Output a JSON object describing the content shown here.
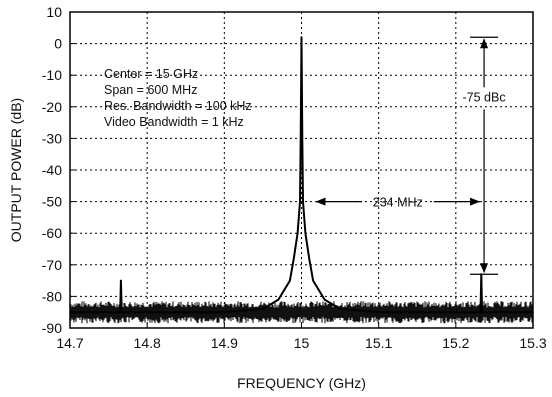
{
  "chart_data": {
    "type": "line",
    "xlabel": "FREQUENCY (GHz)",
    "ylabel": "OUTPUT POWER (dB)",
    "xlim": [
      14.7,
      15.3
    ],
    "ylim": [
      -90,
      10
    ],
    "xticks": [
      "14.7",
      "14.8",
      "14.9",
      "15",
      "15.1",
      "15.2",
      "15.3"
    ],
    "xtick_values": [
      14.7,
      14.8,
      14.9,
      15.0,
      15.1,
      15.2,
      15.3
    ],
    "yticks": [
      "10",
      "0",
      "-10",
      "-20",
      "-30",
      "-40",
      "-50",
      "-60",
      "-70",
      "-80",
      "-90"
    ],
    "ytick_values": [
      10,
      0,
      -10,
      -20,
      -30,
      -40,
      -50,
      -60,
      -70,
      -80,
      -90
    ],
    "grid": true,
    "grid_style": "dotted",
    "series": [
      {
        "noise_floor_db": -85,
        "x": [
          14.7,
          14.765,
          14.766,
          14.767,
          14.768,
          14.77,
          14.9,
          14.95,
          14.97,
          14.985,
          14.99,
          14.995,
          14.998,
          14.999,
          15.0,
          15.001,
          15.002,
          15.005,
          15.01,
          15.015,
          15.03,
          15.05,
          15.1,
          15.2,
          15.232,
          15.233,
          15.234,
          15.235,
          15.3
        ],
        "y": [
          -85,
          -85,
          -75,
          -85,
          -85,
          -85,
          -85,
          -84,
          -81,
          -75,
          -68,
          -60,
          -50,
          -30,
          2,
          -30,
          -50,
          -60,
          -68,
          -75,
          -81,
          -84,
          -85,
          -85,
          -85,
          -73,
          -85,
          -85,
          -85
        ]
      }
    ],
    "annotations": {
      "settings": [
        "Center = 15 GHz",
        "Span = 600 MHz",
        "Res. Bandwidth = 100 kHz",
        "Video Bandwidth = 1 kHz"
      ],
      "spur_offset_label": "234 MHz",
      "dbc_label": "-75 dBc",
      "dbc_top": 2,
      "dbc_bottom": -73,
      "offset_from": 15.0,
      "offset_to": 15.234,
      "offset_arrow_y": -50
    }
  }
}
